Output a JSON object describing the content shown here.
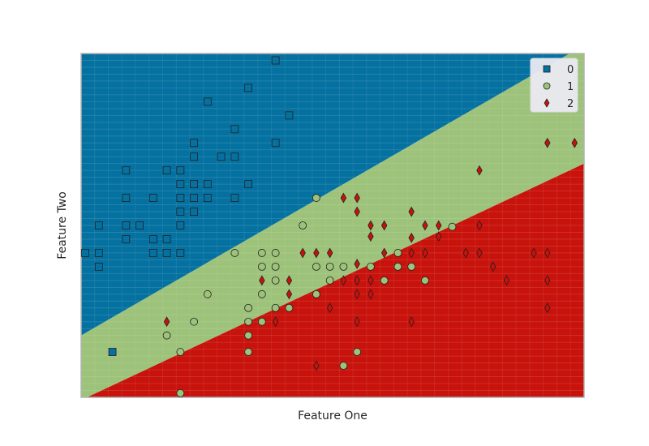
{
  "chart_data": {
    "type": "scatter",
    "title": "",
    "xlabel": "Feature One",
    "ylabel": "Feature Two",
    "xlim": [
      0,
      37
    ],
    "ylim": [
      0,
      25
    ],
    "grid": true,
    "legend_position": "top-right",
    "decision_regions": {
      "boundaries": [
        {
          "between": [
            "0",
            "1"
          ],
          "from": [
            0,
            4.5
          ],
          "to": [
            37,
            25.6
          ]
        },
        {
          "between": [
            "1",
            "2"
          ],
          "from": [
            0,
            -0.2
          ],
          "to": [
            37,
            17.0
          ]
        }
      ],
      "region_colors": {
        "0": "#0571a0",
        "1": "#9dc27a",
        "2": "#c8120c"
      }
    },
    "series": [
      {
        "name": "0",
        "marker": "square",
        "color": "#0571a0",
        "points": [
          [
            14.3,
            24.5
          ],
          [
            12.3,
            22.5
          ],
          [
            9.3,
            21.5
          ],
          [
            15.3,
            20.5
          ],
          [
            11.3,
            19.5
          ],
          [
            8.3,
            18.5
          ],
          [
            14.3,
            18.5
          ],
          [
            8.3,
            17.5
          ],
          [
            10.3,
            17.5
          ],
          [
            11.3,
            17.5
          ],
          [
            3.3,
            16.5
          ],
          [
            6.3,
            16.5
          ],
          [
            7.3,
            16.5
          ],
          [
            7.3,
            15.5
          ],
          [
            8.3,
            15.5
          ],
          [
            9.3,
            15.5
          ],
          [
            12.3,
            15.5
          ],
          [
            3.3,
            14.5
          ],
          [
            5.3,
            14.5
          ],
          [
            7.3,
            14.5
          ],
          [
            8.3,
            14.5
          ],
          [
            9.3,
            14.5
          ],
          [
            11.3,
            14.5
          ],
          [
            7.3,
            13.5
          ],
          [
            8.3,
            13.5
          ],
          [
            1.3,
            12.5
          ],
          [
            3.3,
            12.5
          ],
          [
            4.3,
            12.5
          ],
          [
            7.3,
            12.5
          ],
          [
            3.3,
            11.5
          ],
          [
            5.3,
            11.5
          ],
          [
            6.3,
            11.5
          ],
          [
            0.3,
            10.5
          ],
          [
            1.3,
            10.5
          ],
          [
            5.3,
            10.5
          ],
          [
            6.3,
            10.5
          ],
          [
            7.3,
            10.5
          ],
          [
            1.3,
            9.5
          ],
          [
            2.3,
            3.3
          ]
        ]
      },
      {
        "name": "1",
        "marker": "circle",
        "color": "#9dc27a",
        "points": [
          [
            17.3,
            14.5
          ],
          [
            16.3,
            12.5
          ],
          [
            27.3,
            12.4
          ],
          [
            11.3,
            10.5
          ],
          [
            13.3,
            10.5
          ],
          [
            14.3,
            10.5
          ],
          [
            13.3,
            9.5
          ],
          [
            14.3,
            9.5
          ],
          [
            17.3,
            9.5
          ],
          [
            18.3,
            9.5
          ],
          [
            19.3,
            9.5
          ],
          [
            21.3,
            9.5
          ],
          [
            23.3,
            9.5
          ],
          [
            23.3,
            10.5
          ],
          [
            24.3,
            9.5
          ],
          [
            14.3,
            8.5
          ],
          [
            18.3,
            8.5
          ],
          [
            22.3,
            8.5
          ],
          [
            25.3,
            8.5
          ],
          [
            9.3,
            7.5
          ],
          [
            13.3,
            7.5
          ],
          [
            17.3,
            7.5
          ],
          [
            12.3,
            6.5
          ],
          [
            14.3,
            6.5
          ],
          [
            15.3,
            6.5
          ],
          [
            8.3,
            5.5
          ],
          [
            12.3,
            5.5
          ],
          [
            13.3,
            5.5
          ],
          [
            6.3,
            4.5
          ],
          [
            12.3,
            4.5
          ],
          [
            7.3,
            3.3
          ],
          [
            12.3,
            3.3
          ],
          [
            20.3,
            3.3
          ],
          [
            19.3,
            2.3
          ],
          [
            7.3,
            0.3
          ]
        ]
      },
      {
        "name": "2",
        "marker": "diamond",
        "color": "#c8120c",
        "points": [
          [
            34.3,
            18.5
          ],
          [
            36.3,
            18.5
          ],
          [
            29.3,
            16.5
          ],
          [
            19.3,
            14.5
          ],
          [
            20.3,
            14.5
          ],
          [
            20.3,
            13.5
          ],
          [
            24.3,
            13.5
          ],
          [
            21.3,
            12.5
          ],
          [
            22.3,
            12.5
          ],
          [
            25.3,
            12.5
          ],
          [
            26.3,
            12.5
          ],
          [
            29.3,
            12.5
          ],
          [
            21.3,
            11.7
          ],
          [
            24.3,
            11.6
          ],
          [
            26.3,
            11.7
          ],
          [
            16.3,
            10.5
          ],
          [
            17.3,
            10.5
          ],
          [
            18.3,
            10.5
          ],
          [
            22.3,
            10.5
          ],
          [
            24.3,
            10.5
          ],
          [
            25.3,
            10.5
          ],
          [
            28.3,
            10.5
          ],
          [
            29.3,
            10.5
          ],
          [
            33.3,
            10.5
          ],
          [
            34.3,
            10.5
          ],
          [
            20.3,
            9.7
          ],
          [
            30.3,
            9.5
          ],
          [
            13.3,
            8.5
          ],
          [
            15.3,
            8.5
          ],
          [
            19.3,
            8.5
          ],
          [
            20.3,
            8.5
          ],
          [
            21.3,
            8.5
          ],
          [
            31.3,
            8.5
          ],
          [
            34.3,
            8.5
          ],
          [
            15.3,
            7.5
          ],
          [
            20.3,
            7.5
          ],
          [
            21.3,
            7.5
          ],
          [
            18.3,
            6.5
          ],
          [
            34.3,
            6.5
          ],
          [
            6.3,
            5.5
          ],
          [
            14.3,
            5.5
          ],
          [
            20.3,
            5.5
          ],
          [
            24.3,
            5.5
          ],
          [
            17.3,
            2.3
          ]
        ]
      }
    ],
    "legend": [
      {
        "label": "0",
        "marker": "square"
      },
      {
        "label": "1",
        "marker": "circle"
      },
      {
        "label": "2",
        "marker": "diamond"
      }
    ]
  }
}
